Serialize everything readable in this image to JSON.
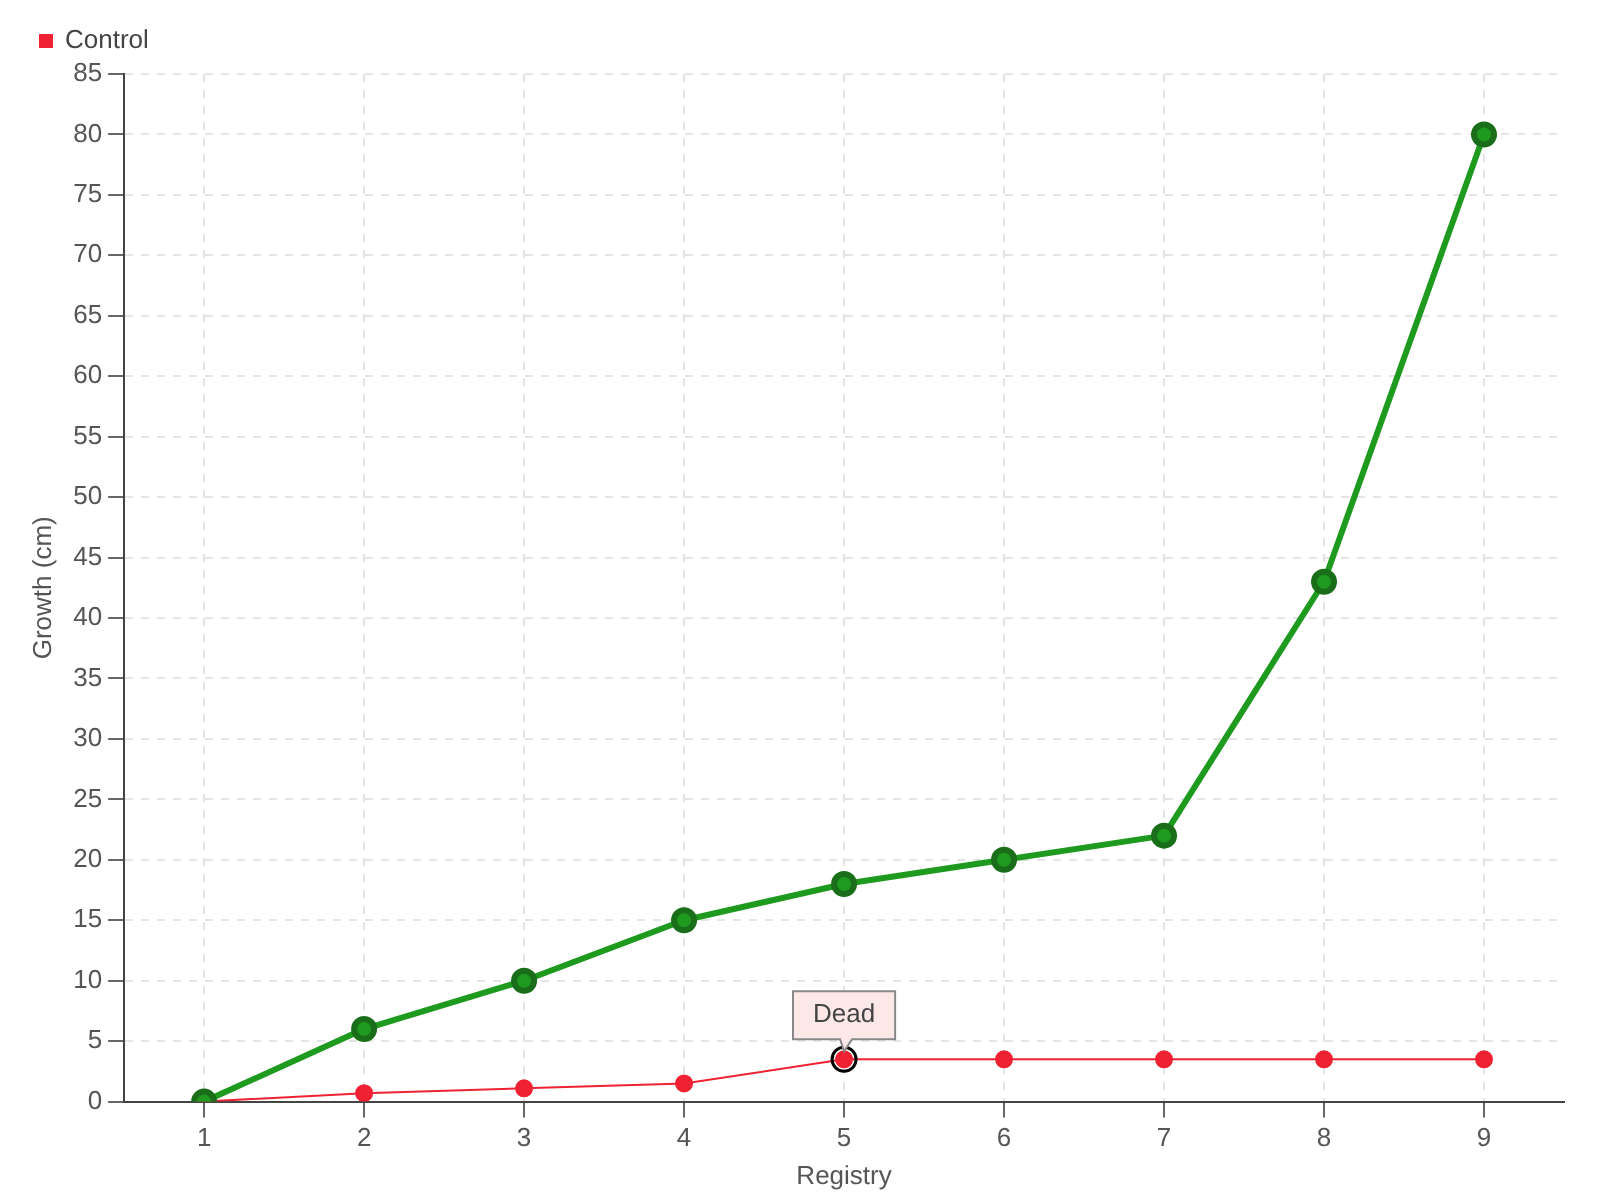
{
  "chart_data": {
    "type": "line",
    "xlabel": "Registry",
    "ylabel": "Growth (cm)",
    "categories": [
      "1",
      "2",
      "3",
      "4",
      "5",
      "6",
      "7",
      "8",
      "9"
    ],
    "series": [
      {
        "color": "#1e9a1e",
        "values": [
          0,
          6,
          10,
          15,
          18,
          20,
          22,
          43,
          80
        ]
      },
      {
        "name": "Control",
        "color": "#ee2233",
        "values": [
          0,
          0.7,
          1.1,
          1.5,
          3.5,
          3.5,
          3.5,
          3.5,
          3.5
        ]
      }
    ],
    "ylim": [
      0,
      85
    ],
    "yticks": [
      0,
      5,
      10,
      15,
      20,
      25,
      30,
      35,
      40,
      45,
      50,
      55,
      60,
      65,
      70,
      75,
      80,
      85
    ],
    "annotations": [
      {
        "text": "Dead",
        "x": "5",
        "y": 3.5
      }
    ],
    "grid": true,
    "legend": "top left",
    "marker": "circle",
    "line_style": "solid"
  }
}
